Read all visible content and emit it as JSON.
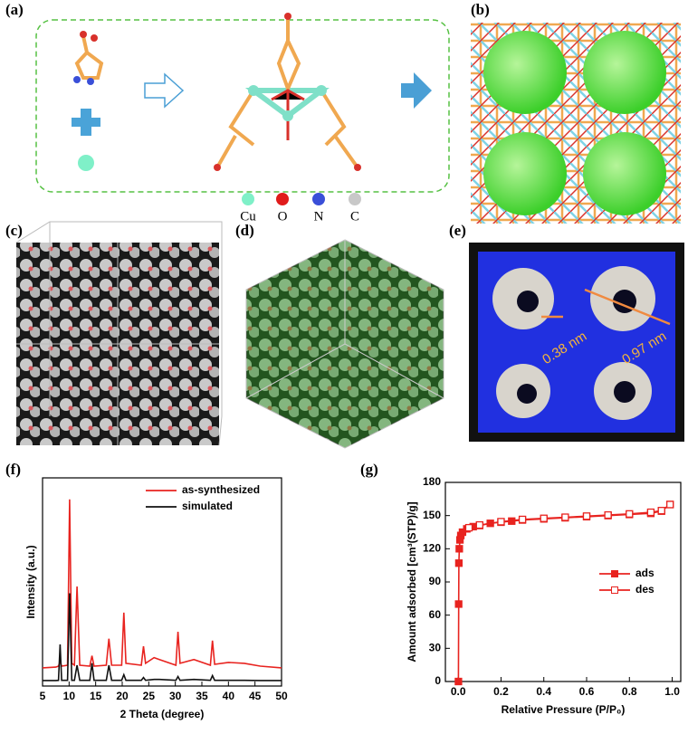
{
  "figure": {
    "panel_labels": [
      "(a)",
      "(b)",
      "(c)",
      "(d)",
      "(e)",
      "(f)",
      "(g)"
    ],
    "atom_legend": [
      "Cu",
      "O",
      "N",
      "C"
    ],
    "pore_sizes": [
      "0.38 nm",
      "0.97 nm"
    ]
  },
  "chart_data": [
    {
      "type": "line",
      "xlabel": "2 Theta (degree)",
      "ylabel": "Intensity (a.u.)",
      "x": [
        5,
        7.5,
        8,
        8.3,
        8.6,
        9.7,
        10.1,
        10.5,
        11,
        11.5,
        12,
        13.9,
        14.3,
        14.7,
        17,
        17.5,
        18,
        19.9,
        20.3,
        20.7,
        23.6,
        24,
        24.4,
        26,
        27,
        30.1,
        30.5,
        30.9,
        33.5,
        36.6,
        37,
        37.4,
        40,
        43,
        46,
        50
      ],
      "series": [
        {
          "name": "as-synthesized",
          "color": "#e8231f",
          "values": [
            9.6,
            10,
            10.5,
            13,
            10.5,
            11,
            98.6,
            12,
            11,
            52.6,
            11,
            10.5,
            16,
            10.5,
            11,
            25,
            11,
            11,
            38.8,
            12,
            11,
            21,
            12,
            15,
            14,
            11,
            28.7,
            12,
            14,
            11,
            24,
            11.5,
            12.5,
            12,
            10.5,
            9.6
          ]
        },
        {
          "name": "simulated",
          "color": "#111111",
          "values": [
            2.9,
            2.9,
            3,
            22,
            3,
            3,
            49,
            3,
            3,
            11,
            3,
            3,
            12,
            3,
            3,
            11,
            3,
            3,
            6,
            3,
            3,
            4.5,
            3,
            3.5,
            3.5,
            3,
            5,
            3,
            3.5,
            3,
            5.5,
            3,
            3,
            3,
            2.9,
            2.9
          ]
        }
      ],
      "xlim": [
        5,
        50
      ],
      "xticks": [
        5,
        10,
        15,
        20,
        25,
        30,
        35,
        40,
        45,
        50
      ],
      "ylim": [
        0,
        110
      ],
      "legend": "upper right"
    },
    {
      "type": "line",
      "xlabel": "Relative Pressure (P/P₀)",
      "ylabel": "Amount adsorbed [cm³(STP)/g]",
      "series": [
        {
          "name": "ads",
          "color": "#e8231f",
          "marker": "filled",
          "x": [
            0.001,
            0.002,
            0.003,
            0.005,
            0.008,
            0.012,
            0.02,
            0.04,
            0.07,
            0.1,
            0.15,
            0.2,
            0.25,
            0.3,
            0.4,
            0.5,
            0.6,
            0.7,
            0.8,
            0.9,
            0.95,
            0.99
          ],
          "values": [
            0,
            70,
            107,
            120,
            128,
            132,
            135,
            138,
            140,
            141,
            143,
            144,
            145,
            146,
            147,
            148,
            149,
            150,
            151,
            152,
            154,
            160
          ]
        },
        {
          "name": "des",
          "color": "#e8231f",
          "marker": "open",
          "x": [
            0.99,
            0.95,
            0.9,
            0.8,
            0.7,
            0.6,
            0.5,
            0.4,
            0.3,
            0.2,
            0.1,
            0.05
          ],
          "values": [
            160,
            154.5,
            153,
            151.5,
            150.5,
            149.5,
            148.5,
            147.5,
            146.5,
            144.5,
            141.5,
            139
          ]
        }
      ],
      "xlim": [
        -0.06,
        1.04
      ],
      "xticks": [
        {
          "value": 0,
          "label": "0.0"
        },
        {
          "value": 0.2,
          "label": "0.2"
        },
        {
          "value": 0.4,
          "label": "0.4"
        },
        {
          "value": 0.6,
          "label": "0.6"
        },
        {
          "value": 0.8,
          "label": "0.8"
        },
        {
          "value": 1,
          "label": "1.0"
        }
      ],
      "ylim": [
        0,
        180
      ],
      "yticks": [
        0,
        30,
        60,
        90,
        120,
        150,
        180
      ],
      "legend": "center right"
    }
  ]
}
